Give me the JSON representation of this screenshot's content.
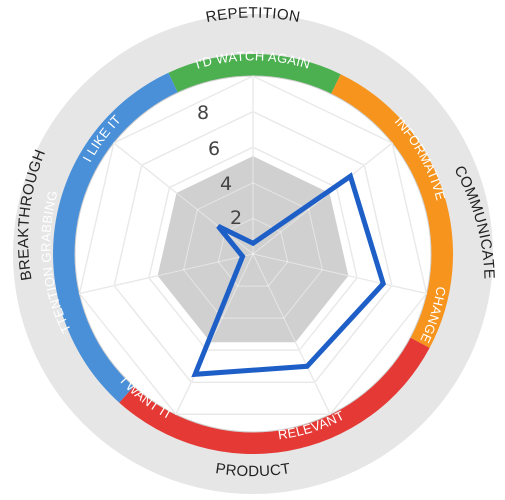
{
  "chart_data": {
    "type": "radar",
    "scale": {
      "min": 0,
      "max": 10,
      "rings": [
        2,
        4,
        6,
        8,
        10
      ]
    },
    "tick_labels": [
      "2",
      "4",
      "6",
      "8"
    ],
    "axes": [
      "I'D WATCH AGAIN",
      "INFORMATIVE",
      "CHANGE",
      "RELEVANT",
      "I WANT IT",
      "ATTENTION GRABBING",
      "I LIKE IT"
    ],
    "groups": [
      {
        "label": "REPETITION",
        "color": "#4caf50",
        "items": [
          "I'D WATCH AGAIN"
        ]
      },
      {
        "label": "COMMUNICATE",
        "color": "#f7941d",
        "items": [
          "INFORMATIVE",
          "CHANGE"
        ]
      },
      {
        "label": "PRODUCT",
        "color": "#e53935",
        "items": [
          "RELEVANT",
          "I WANT IT"
        ]
      },
      {
        "label": "BREAKTHROUGH",
        "color": "#4a90d9",
        "items": [
          "ATTENTION GRABBING",
          "I LIKE IT"
        ]
      }
    ],
    "benchmark": {
      "values": [
        5.5,
        5.5,
        5.5,
        5.5,
        5.5,
        5.5,
        5.5
      ],
      "color": "#c8c8c8"
    },
    "series": [
      {
        "values": [
          0.6,
          7.0,
          7.5,
          7.0,
          7.5,
          0.6,
          2.5
        ],
        "color": "#1e5fc7"
      }
    ],
    "grid": true,
    "outer_ring_color": "#e4e4e4"
  }
}
